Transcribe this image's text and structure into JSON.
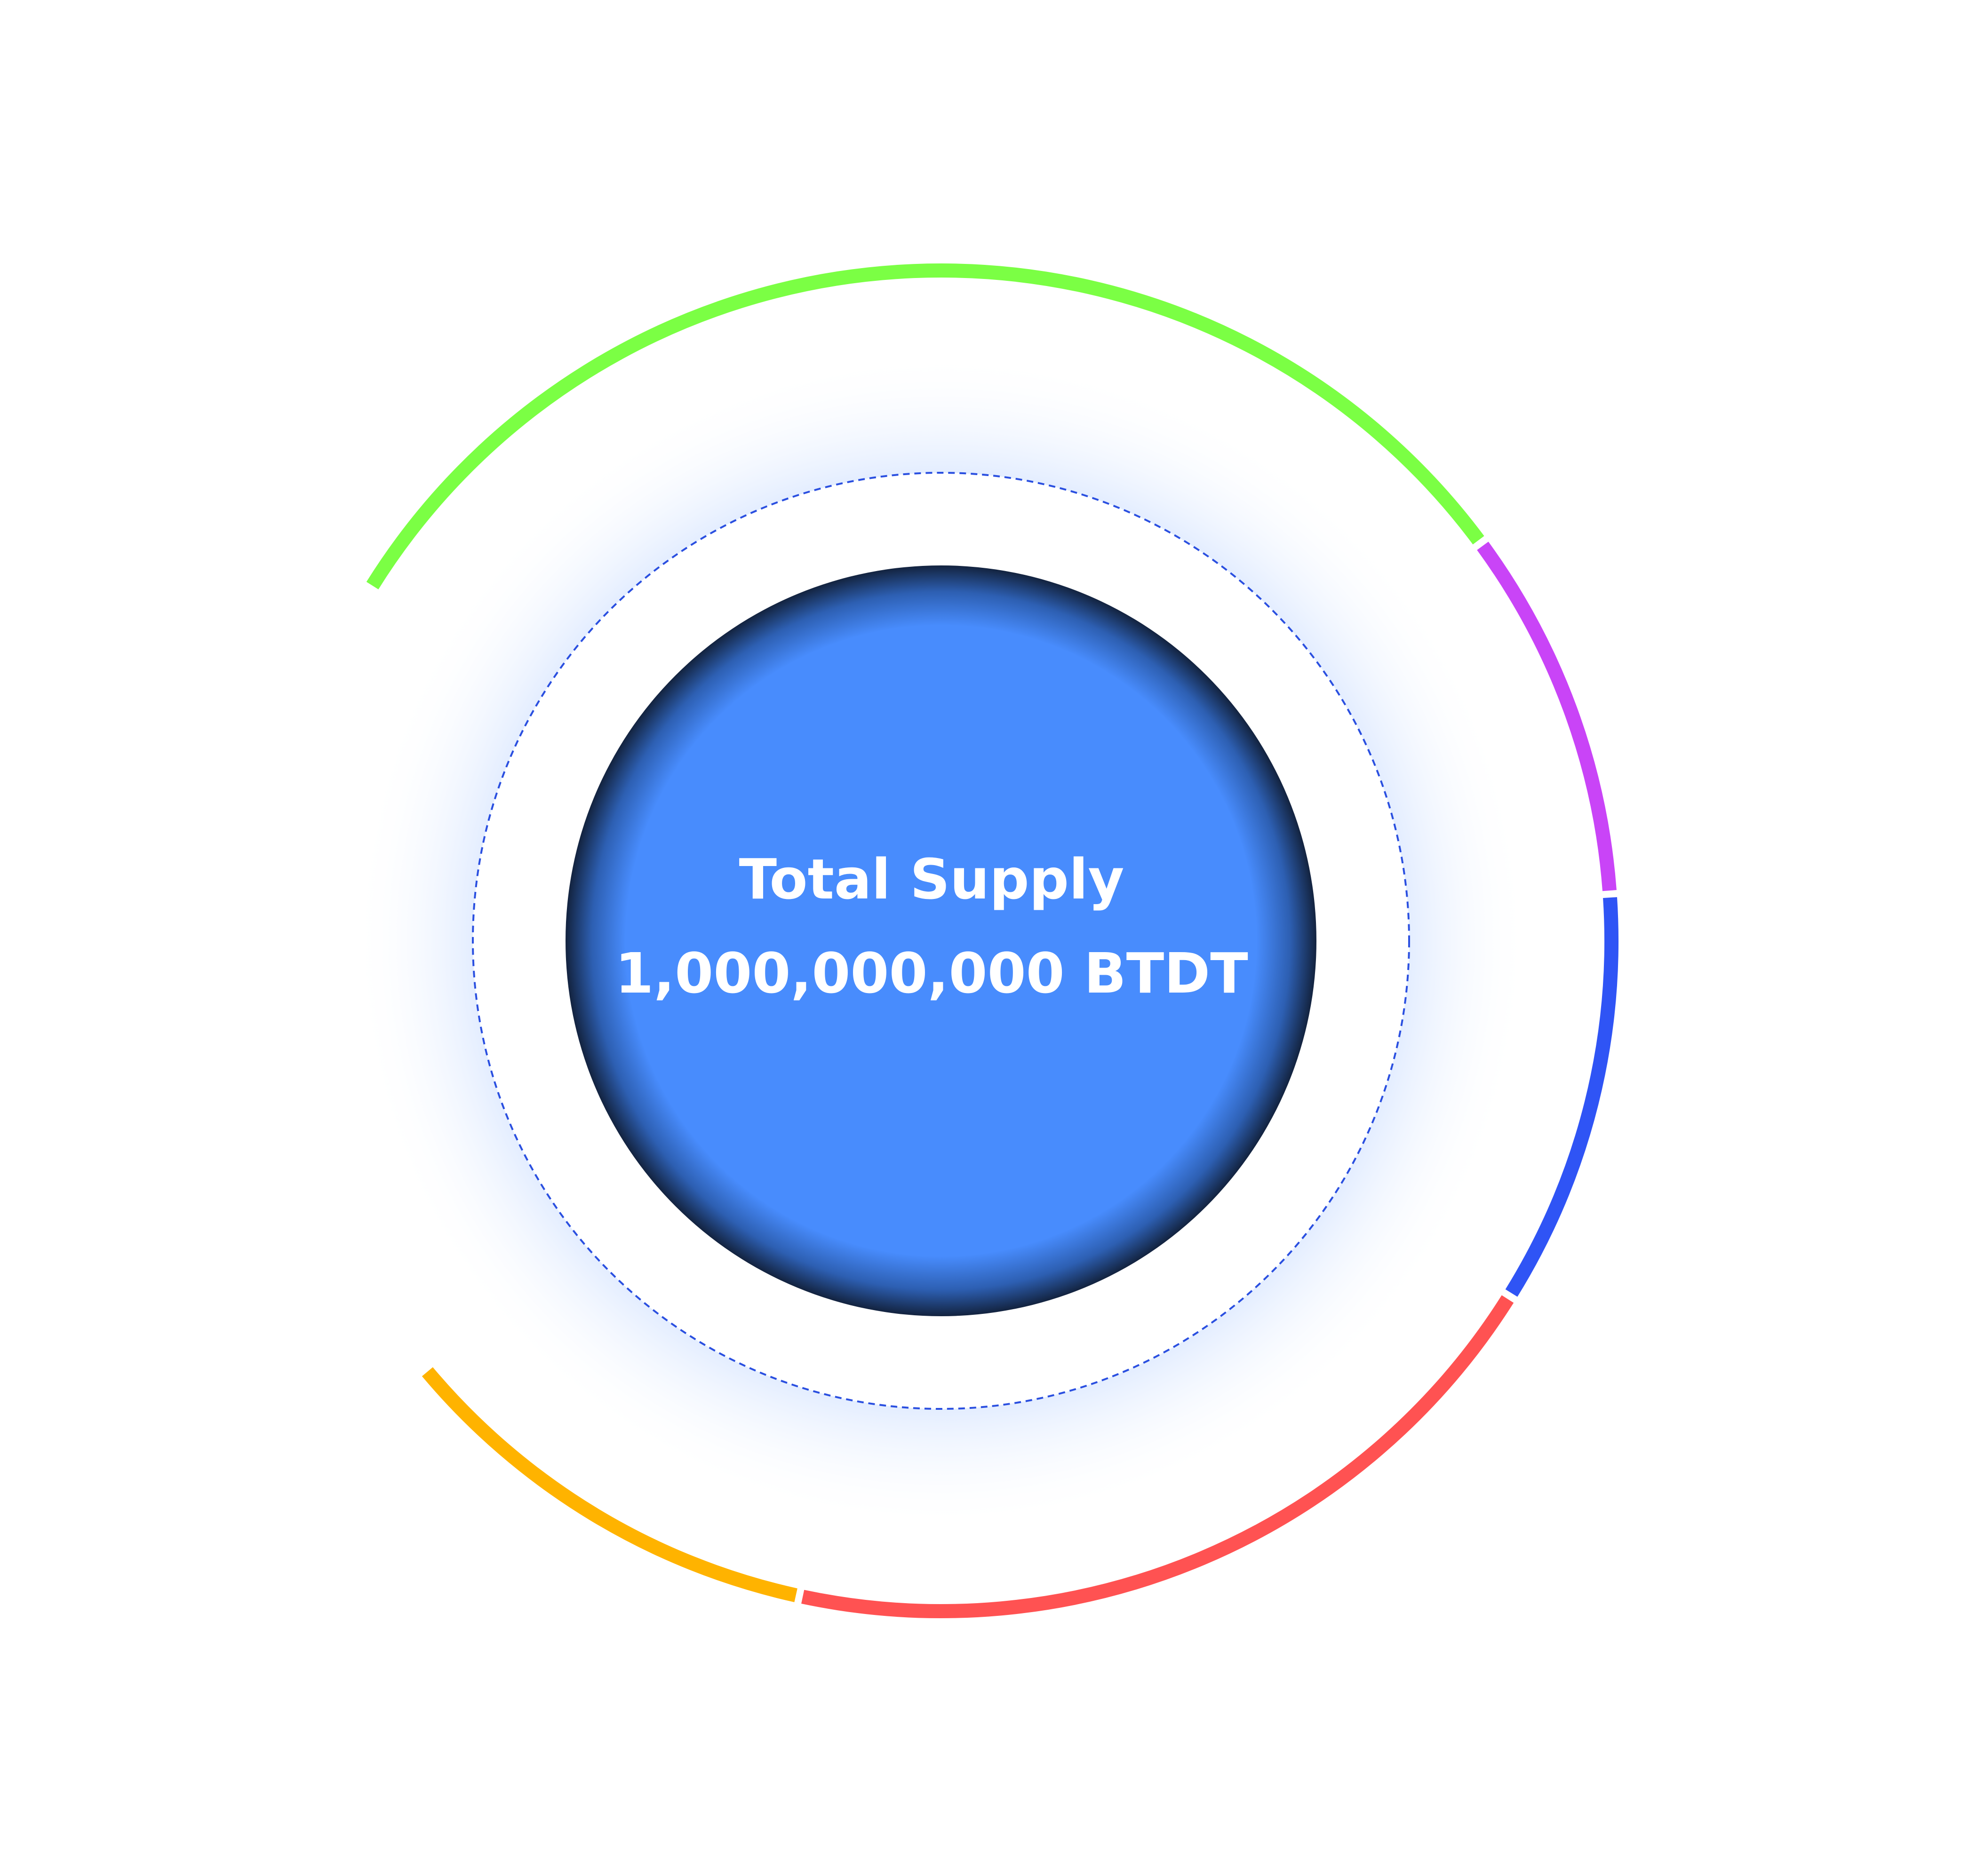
{
  "center": {
    "title": "Total Supply",
    "value": "1,000,000,000 BTDT"
  },
  "colors": {
    "background": "#ffffff",
    "core_fill": "#488cfd",
    "core_edge": "#13233f",
    "glow": "#b9d3ff",
    "dashed_ring": "#2a4fe0"
  },
  "chart_data": {
    "type": "pie",
    "title": "Total Supply",
    "total": "1,000,000,000 BTDT",
    "legend": "none",
    "segments": [
      {
        "color": "#ffb300",
        "value": 10.5
      },
      {
        "color": "#ff5252",
        "value": 19.5
      },
      {
        "color": "#2f54f5",
        "value": 10.0
      },
      {
        "color": "#c944f7",
        "value": 9.0
      },
      {
        "color": "#7bff44",
        "value": 31.0
      }
    ],
    "gap_after_last": 20.0
  }
}
